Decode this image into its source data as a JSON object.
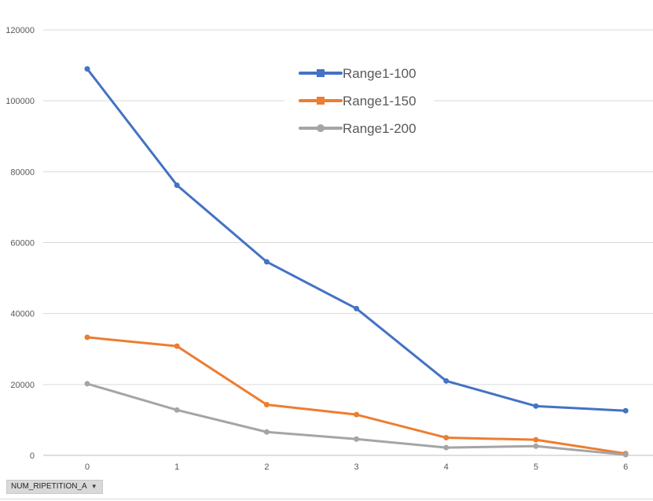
{
  "chart_data": {
    "type": "line",
    "title": "",
    "xlabel": "",
    "ylabel": "",
    "categories": [
      "0",
      "1",
      "2",
      "3",
      "4",
      "5",
      "6"
    ],
    "ylim": [
      0,
      120000
    ],
    "yticks": [
      "0",
      "20000",
      "40000",
      "60000",
      "80000",
      "100000",
      "120000"
    ],
    "grid": true,
    "legend_position": "top-center",
    "series": [
      {
        "name": "Range1-100",
        "color": "#4472c4",
        "values": [
          109000,
          76200,
          54600,
          41400,
          21000,
          13900,
          12600
        ]
      },
      {
        "name": "Range1-150",
        "color": "#ed7d31",
        "values": [
          33300,
          30800,
          14300,
          11500,
          5000,
          4400,
          500
        ]
      },
      {
        "name": "Range1-200",
        "color": "#a5a5a5",
        "values": [
          20200,
          12800,
          6600,
          4600,
          2200,
          2600,
          200
        ]
      }
    ]
  },
  "field_button": {
    "label": "NUM_RIPETITION_A",
    "icon": "dropdown-arrow-icon"
  }
}
